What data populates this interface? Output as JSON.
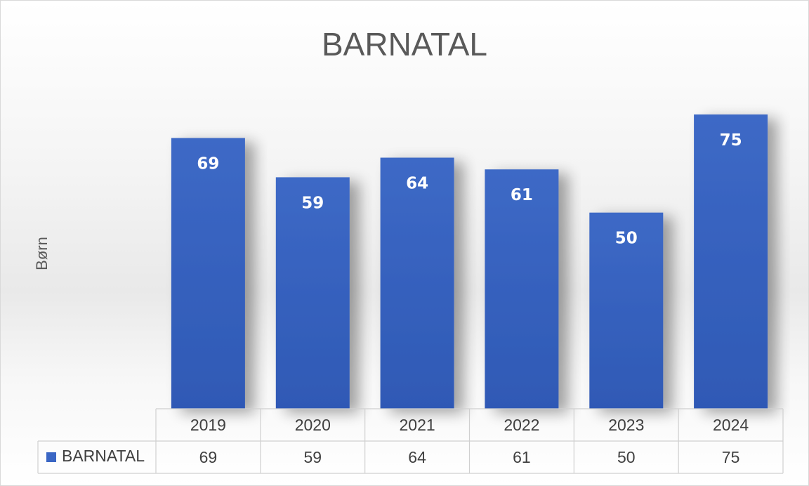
{
  "chart_data": {
    "type": "bar",
    "title": "BARNATAL",
    "xlabel": "",
    "ylabel": "Børn",
    "categories": [
      "2019",
      "2020",
      "2021",
      "2022",
      "2023",
      "2024"
    ],
    "series": [
      {
        "name": "BARNATAL",
        "values": [
          69,
          59,
          64,
          61,
          50,
          75
        ]
      }
    ],
    "ylim": [
      0,
      80
    ],
    "grid": false,
    "data_labels": "inside-end",
    "data_table": true,
    "colors": {
      "bar": "#3a66c4",
      "bar_dark": "#2e57b5",
      "text": "#595959"
    }
  }
}
